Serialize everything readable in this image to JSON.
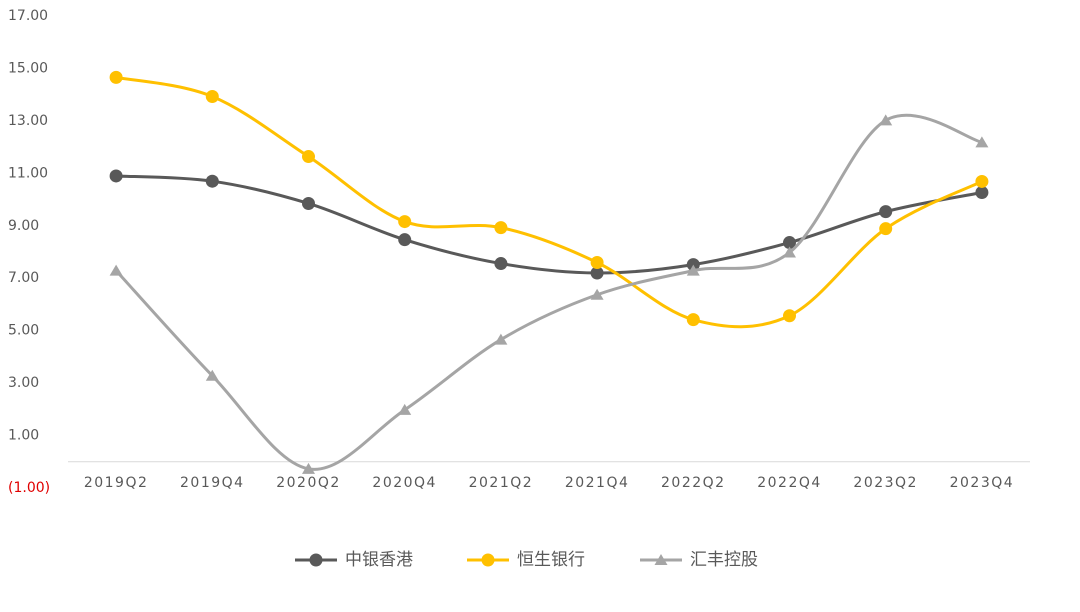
{
  "chart_data": {
    "type": "line",
    "categories": [
      "2019Q2",
      "2019Q4",
      "2020Q2",
      "2020Q4",
      "2021Q2",
      "2021Q4",
      "2022Q2",
      "2022Q4",
      "2023Q2",
      "2023Q4"
    ],
    "series": [
      {
        "name": "中银香港",
        "color": "#595959",
        "marker": "circle",
        "values": [
          10.9,
          10.7,
          9.85,
          8.47,
          7.56,
          7.2,
          7.52,
          8.36,
          9.54,
          10.27
        ]
      },
      {
        "name": "恒生银行",
        "color": "#FFC000",
        "marker": "circle",
        "values": [
          14.66,
          13.93,
          11.64,
          9.16,
          8.93,
          7.6,
          5.42,
          5.57,
          8.89,
          10.69
        ]
      },
      {
        "name": "汇丰控股",
        "color": "#A5A5A5",
        "marker": "triangle",
        "values": [
          7.29,
          3.28,
          -0.27,
          1.98,
          4.66,
          6.37,
          7.29,
          7.98,
          13.02,
          12.18
        ]
      }
    ],
    "ylim": [
      -1,
      17
    ],
    "yticks": [
      {
        "value": 17,
        "label": "17.00"
      },
      {
        "value": 15,
        "label": "15.00"
      },
      {
        "value": 13,
        "label": "13.00"
      },
      {
        "value": 11,
        "label": "11.00"
      },
      {
        "value": 9,
        "label": "9.00"
      },
      {
        "value": 7,
        "label": "7.00"
      },
      {
        "value": 5,
        "label": "5.00"
      },
      {
        "value": 3,
        "label": "3.00"
      },
      {
        "value": 1,
        "label": "1.00"
      },
      {
        "value": -1,
        "label": "(1.00)"
      }
    ],
    "grid": false,
    "legend": "bottom",
    "smooth": true
  }
}
